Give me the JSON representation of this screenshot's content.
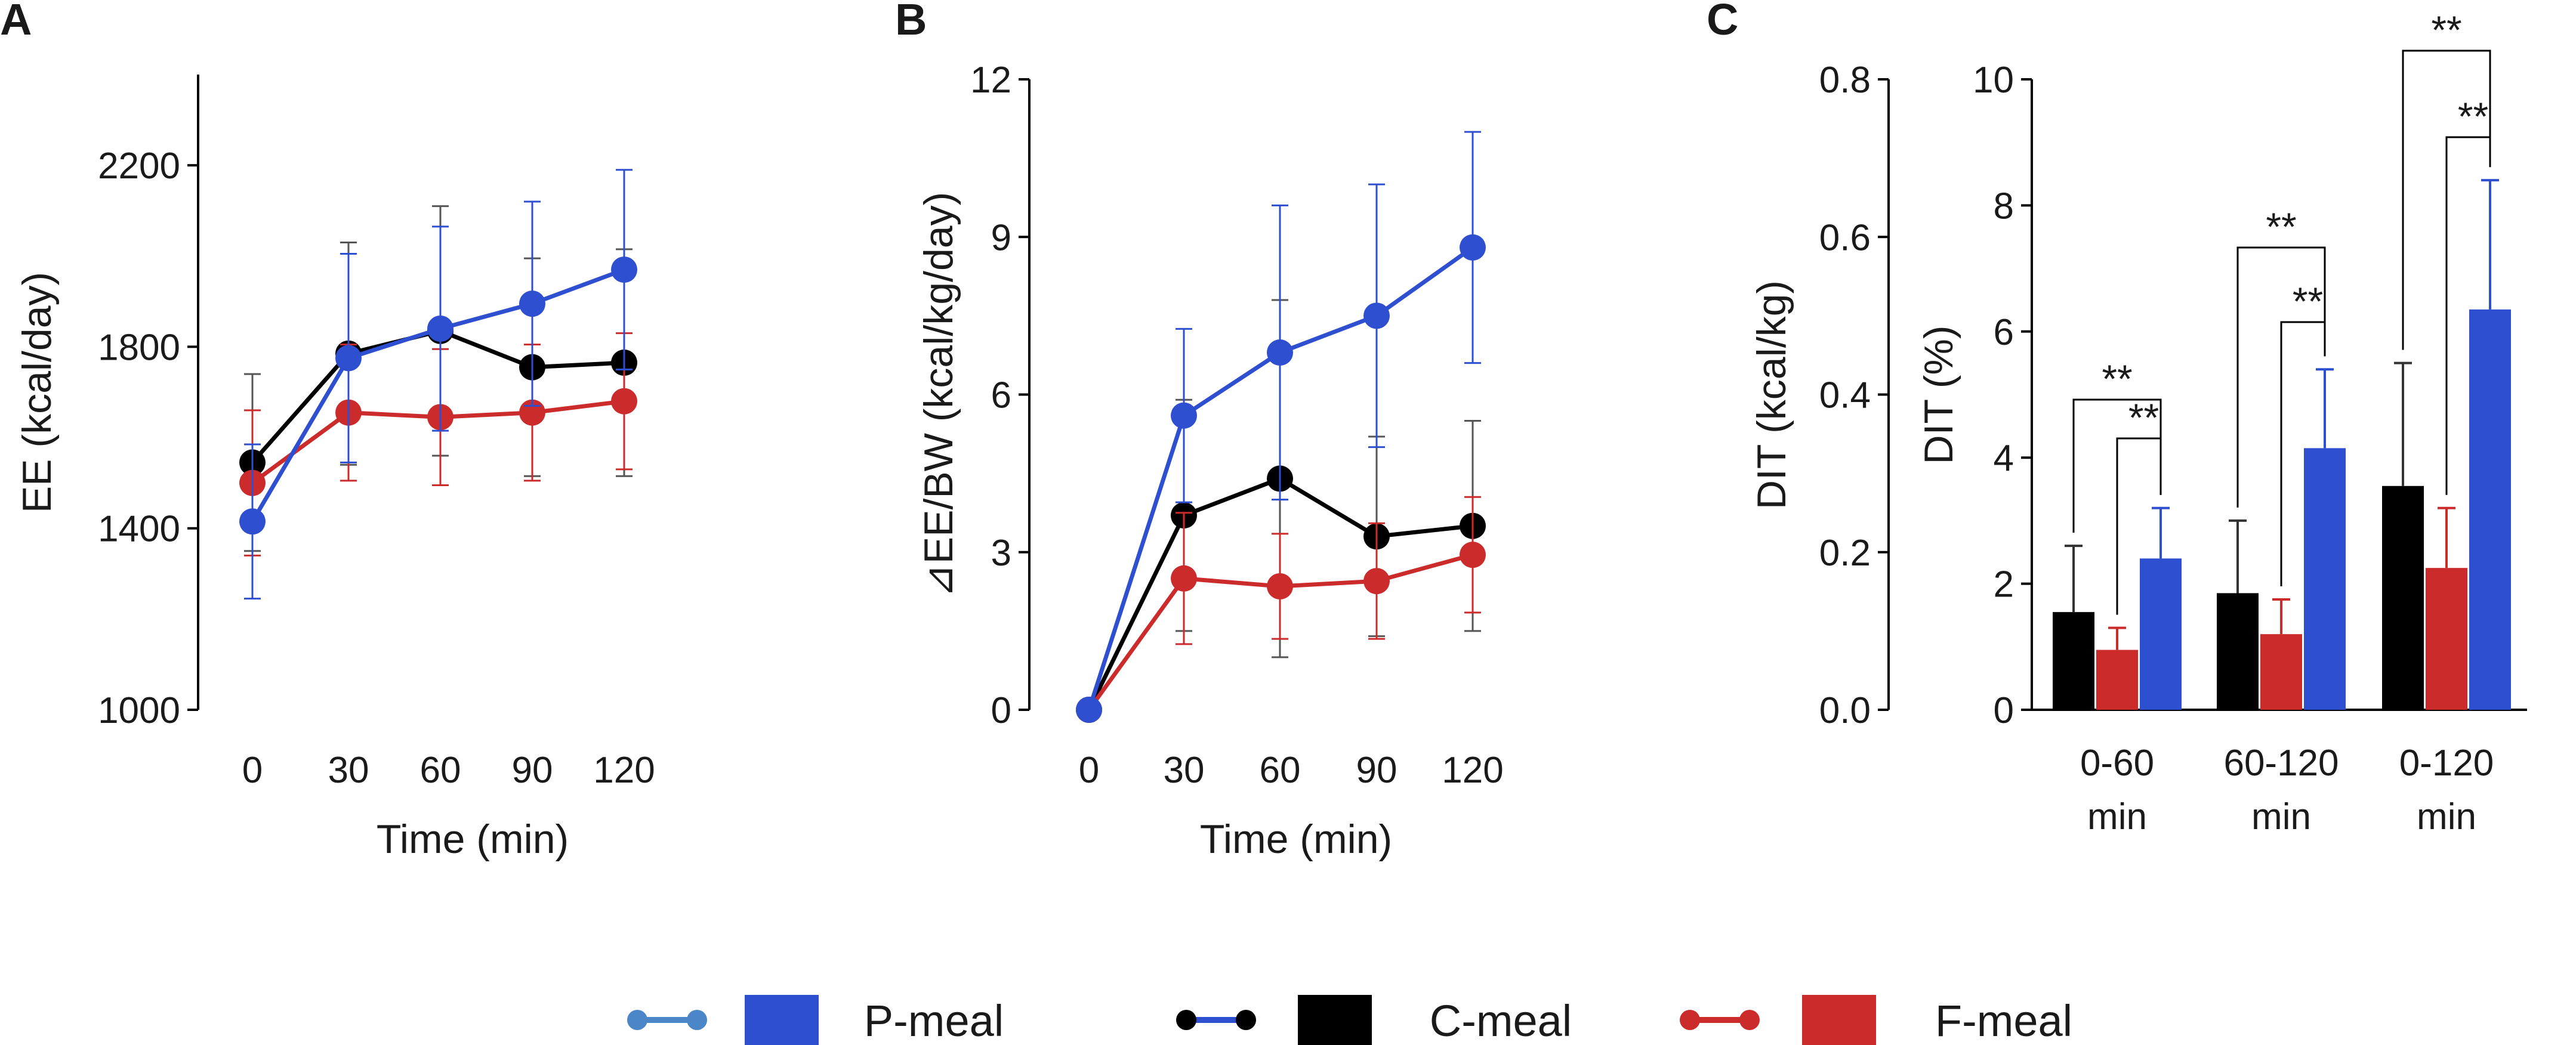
{
  "figure": {
    "legend": [
      {
        "name": "P-meal",
        "color": "#2e4fd0"
      },
      {
        "name": "C-meal",
        "color": "#000000"
      },
      {
        "name": "F-meal",
        "color": "#cc2b2b"
      }
    ]
  },
  "chart_data": [
    {
      "panel": "A",
      "type": "line",
      "title": "",
      "xlabel": "Time (min)",
      "ylabel": "EE (kcal/day)",
      "x": [
        0,
        30,
        60,
        90,
        120
      ],
      "xticks": [
        "0",
        "30",
        "60",
        "90",
        "120"
      ],
      "ylim": [
        1000,
        2400
      ],
      "yticks": [
        "1000",
        "1400",
        "1800",
        "2200"
      ],
      "series": [
        {
          "name": "C-meal",
          "color": "#000000",
          "values": [
            1545,
            1785,
            1835,
            1755,
            1765
          ],
          "err": [
            195,
            245,
            275,
            240,
            250
          ]
        },
        {
          "name": "F-meal",
          "color": "#cc2b2b",
          "values": [
            1500,
            1655,
            1645,
            1655,
            1680
          ],
          "err": [
            160,
            150,
            150,
            150,
            150
          ]
        },
        {
          "name": "P-meal",
          "color": "#2e4fd0",
          "values": [
            1415,
            1775,
            1840,
            1895,
            1970
          ],
          "err": [
            170,
            230,
            225,
            225,
            220
          ]
        }
      ]
    },
    {
      "panel": "B",
      "type": "line",
      "title": "",
      "xlabel": "Time (min)",
      "ylabel": "⊿EE/BW (kcal/kg/day)",
      "x": [
        0,
        30,
        60,
        90,
        120
      ],
      "xticks": [
        "0",
        "30",
        "60",
        "90",
        "120"
      ],
      "ylim": [
        0,
        12
      ],
      "yticks": [
        "0",
        "3",
        "6",
        "9",
        "12"
      ],
      "series": [
        {
          "name": "C-meal",
          "color": "#000000",
          "values": [
            0,
            3.7,
            4.4,
            3.3,
            3.5
          ],
          "err": [
            0,
            2.2,
            3.4,
            1.9,
            2.0
          ]
        },
        {
          "name": "F-meal",
          "color": "#cc2b2b",
          "values": [
            0,
            2.5,
            2.35,
            2.45,
            2.95
          ],
          "err": [
            0,
            1.25,
            1.0,
            1.1,
            1.1
          ]
        },
        {
          "name": "P-meal",
          "color": "#2e4fd0",
          "values": [
            0,
            5.6,
            6.8,
            7.5,
            8.8
          ],
          "err": [
            0,
            1.65,
            2.8,
            2.5,
            2.2
          ]
        }
      ]
    },
    {
      "panel": "C",
      "type": "bar",
      "title": "",
      "ylabel_left": "DIT (kcal/kg)",
      "ylabel_right": "DIT (%)",
      "categories": [
        [
          "0-60",
          "min"
        ],
        [
          "60-120",
          "min"
        ],
        [
          "0-120",
          "min"
        ]
      ],
      "ylim_left": [
        0,
        0.8
      ],
      "yticks_left": [
        "0.0",
        "0.2",
        "0.4",
        "0.6",
        "0.8"
      ],
      "ylim_right": [
        0,
        10
      ],
      "yticks_right": [
        "0",
        "2",
        "4",
        "6",
        "8",
        "10"
      ],
      "series": [
        {
          "name": "C-meal",
          "color": "#000000",
          "values": [
            1.55,
            1.85,
            3.55
          ],
          "err": [
            1.05,
            1.15,
            1.95
          ]
        },
        {
          "name": "F-meal",
          "color": "#cc2b2b",
          "values": [
            0.95,
            1.2,
            2.25
          ],
          "err": [
            0.35,
            0.55,
            0.95
          ]
        },
        {
          "name": "P-meal",
          "color": "#2e4fd0",
          "values": [
            2.4,
            4.15,
            6.35
          ],
          "err": [
            0.8,
            1.25,
            2.05
          ]
        }
      ],
      "significance": [
        {
          "group": 0,
          "from": "C-meal",
          "to": "P-meal",
          "label": "**"
        },
        {
          "group": 0,
          "from": "F-meal",
          "to": "P-meal",
          "label": "**"
        },
        {
          "group": 1,
          "from": "C-meal",
          "to": "P-meal",
          "label": "**"
        },
        {
          "group": 1,
          "from": "F-meal",
          "to": "P-meal",
          "label": "**"
        },
        {
          "group": 2,
          "from": "C-meal",
          "to": "P-meal",
          "label": "**"
        },
        {
          "group": 2,
          "from": "F-meal",
          "to": "P-meal",
          "label": "**"
        }
      ]
    }
  ]
}
